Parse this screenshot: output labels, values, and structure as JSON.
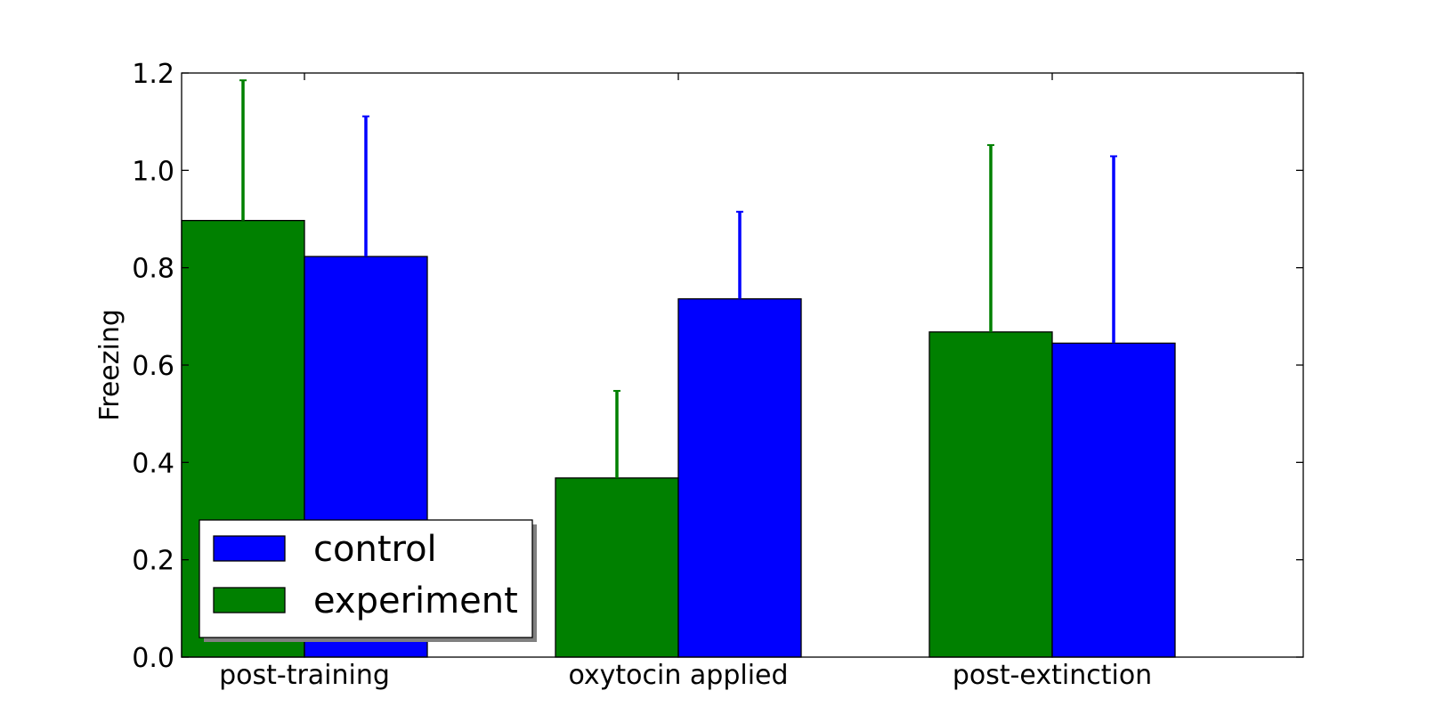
{
  "chart_data": {
    "type": "bar",
    "title": "",
    "xlabel": "",
    "ylabel": "Freezing",
    "categories": [
      "post-training",
      "oxytocin applied",
      "post-extinction"
    ],
    "series": [
      {
        "name": "experiment",
        "color": "#008000",
        "values": [
          0.897,
          0.368,
          0.668
        ],
        "errors": [
          0.288,
          0.179,
          0.384
        ]
      },
      {
        "name": "control",
        "color": "#0000ff",
        "values": [
          0.823,
          0.736,
          0.645
        ],
        "errors": [
          0.288,
          0.179,
          0.384
        ]
      }
    ],
    "ylim": [
      0,
      1.2
    ],
    "yticks": [
      "0.0",
      "0.2",
      "0.4",
      "0.6",
      "0.8",
      "1.0",
      "1.2"
    ],
    "grid": false,
    "legend": {
      "placement": "lower-left",
      "entries": [
        {
          "label": "control",
          "color": "#0000ff"
        },
        {
          "label": "experiment",
          "color": "#008000"
        }
      ]
    }
  }
}
